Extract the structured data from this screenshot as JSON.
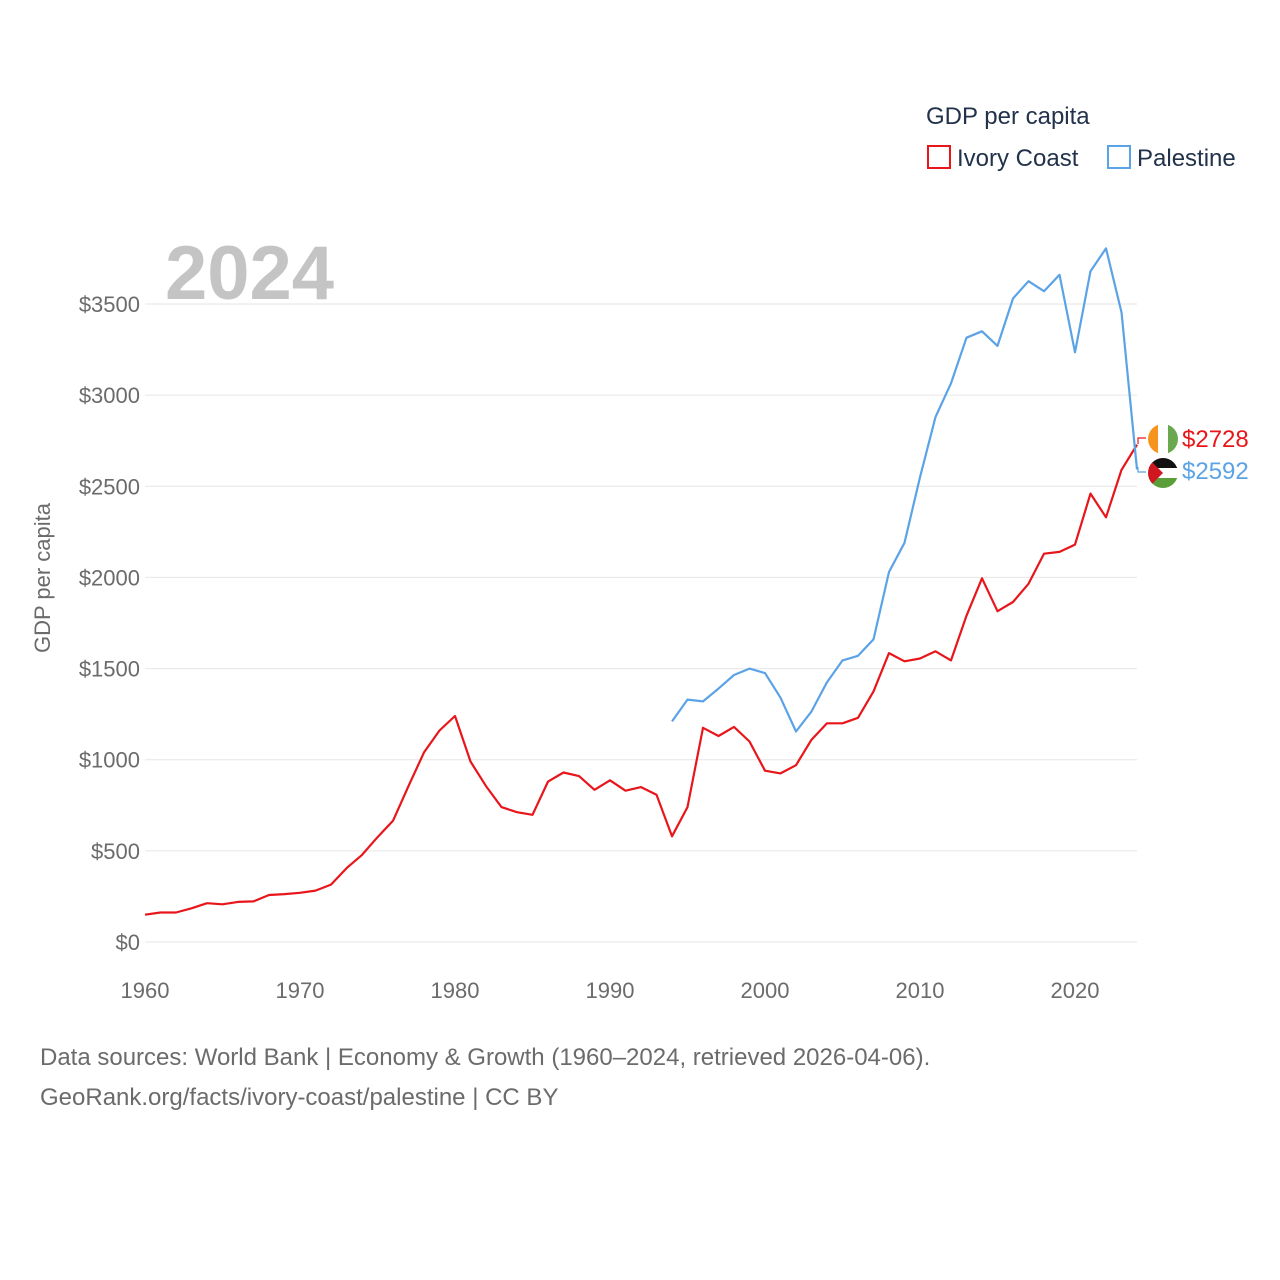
{
  "chart_data": {
    "type": "line",
    "title": "",
    "year_label": "2024",
    "ylabel": "GDP per capita",
    "xlabel": "",
    "xlim": [
      1960,
      2024
    ],
    "ylim": [
      0,
      3500
    ],
    "x_ticks": [
      1960,
      1970,
      1980,
      1990,
      2000,
      2010,
      2020
    ],
    "y_ticks": [
      {
        "value": 0,
        "label": "$0"
      },
      {
        "value": 500,
        "label": "$500"
      },
      {
        "value": 1000,
        "label": "$1000"
      },
      {
        "value": 1500,
        "label": "$1500"
      },
      {
        "value": 2000,
        "label": "$2000"
      },
      {
        "value": 2500,
        "label": "$2500"
      },
      {
        "value": 3000,
        "label": "$3000"
      },
      {
        "value": 3500,
        "label": "$3500"
      }
    ],
    "grid": true,
    "legend": {
      "title": "GDP per capita",
      "position": "top-right"
    },
    "series": [
      {
        "name": "Ivory Coast",
        "color": "#e8161b",
        "end_label": "$2728",
        "flag": "ivory-coast-flag",
        "x": [
          1960,
          1961,
          1962,
          1963,
          1964,
          1965,
          1966,
          1967,
          1968,
          1969,
          1970,
          1971,
          1972,
          1973,
          1974,
          1975,
          1976,
          1977,
          1978,
          1979,
          1980,
          1981,
          1982,
          1983,
          1984,
          1985,
          1986,
          1987,
          1988,
          1989,
          1990,
          1991,
          1992,
          1993,
          1994,
          1995,
          1996,
          1997,
          1998,
          1999,
          2000,
          2001,
          2002,
          2003,
          2004,
          2005,
          2006,
          2007,
          2008,
          2009,
          2010,
          2011,
          2012,
          2013,
          2014,
          2015,
          2016,
          2017,
          2018,
          2019,
          2020,
          2021,
          2022,
          2023,
          2024
        ],
        "values": [
          150,
          162,
          162,
          185,
          213,
          207,
          220,
          223,
          258,
          263,
          270,
          282,
          315,
          405,
          478,
          575,
          665,
          855,
          1040,
          1160,
          1240,
          990,
          855,
          740,
          712,
          698,
          880,
          930,
          910,
          835,
          887,
          830,
          850,
          808,
          580,
          740,
          1175,
          1130,
          1180,
          1100,
          940,
          925,
          970,
          1110,
          1200,
          1200,
          1230,
          1375,
          1585,
          1540,
          1555,
          1595,
          1545,
          1790,
          1995,
          1815,
          1865,
          1965,
          2130,
          2140,
          2180,
          2460,
          2330,
          2590,
          2728
        ]
      },
      {
        "name": "Palestine",
        "color": "#5ba3e6",
        "end_label": "$2592",
        "flag": "palestine-flag",
        "x": [
          1994,
          1995,
          1996,
          1997,
          1998,
          1999,
          2000,
          2001,
          2002,
          2003,
          2004,
          2005,
          2006,
          2007,
          2008,
          2009,
          2010,
          2011,
          2012,
          2013,
          2014,
          2015,
          2016,
          2017,
          2018,
          2019,
          2020,
          2021,
          2022,
          2023,
          2024
        ],
        "values": [
          1210,
          1330,
          1320,
          1390,
          1465,
          1500,
          1475,
          1340,
          1155,
          1265,
          1425,
          1545,
          1570,
          1660,
          2030,
          2190,
          2550,
          2880,
          3065,
          3315,
          3350,
          3270,
          3530,
          3625,
          3570,
          3660,
          3235,
          3680,
          3805,
          3455,
          2592
        ]
      }
    ]
  },
  "source": {
    "line1": "Data sources: World Bank | Economy & Growth (1960–2024, retrieved 2026-04-06).",
    "line2": "GeoRank.org/facts/ivory-coast/palestine | CC BY"
  }
}
